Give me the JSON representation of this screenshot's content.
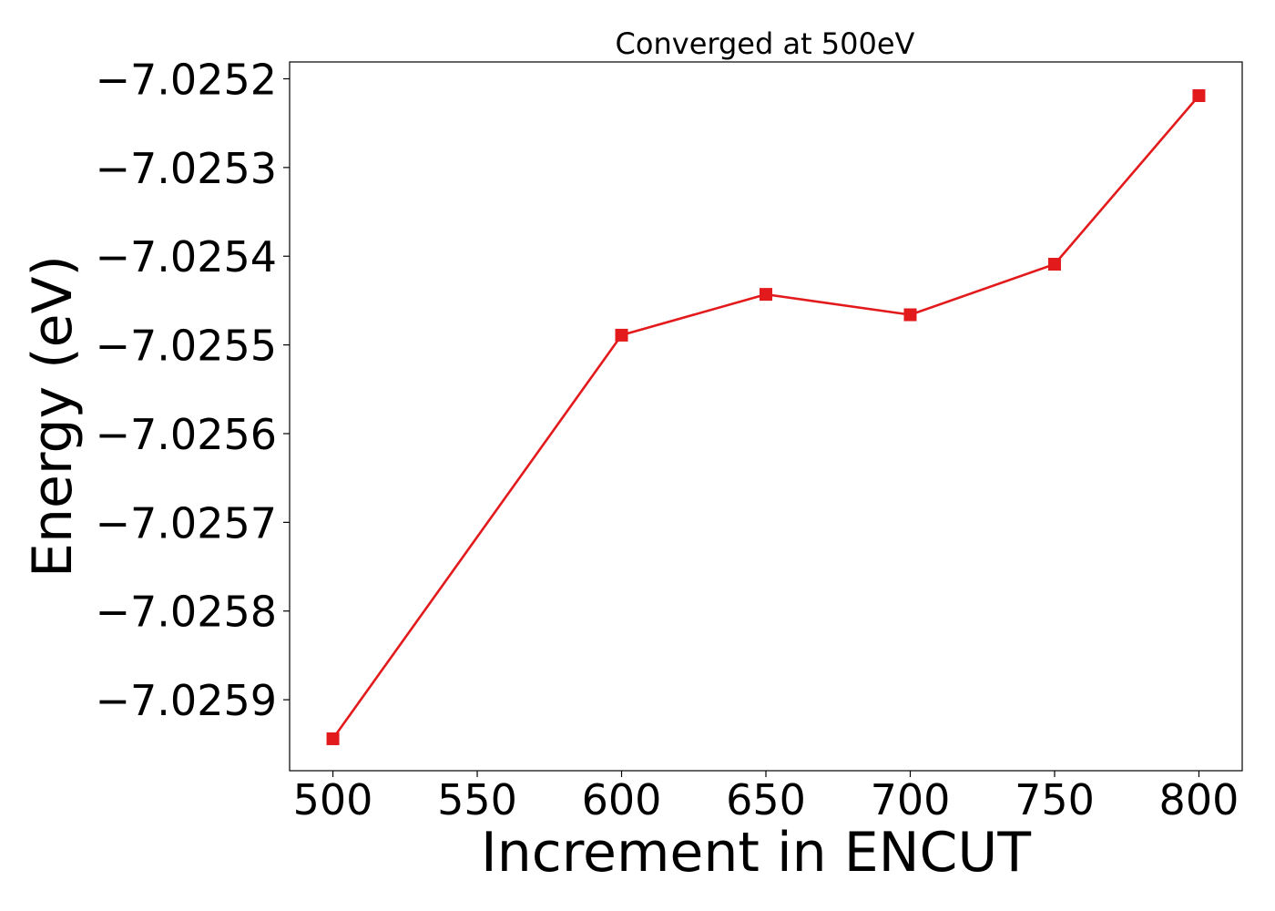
{
  "chart_data": {
    "type": "line",
    "title": "Converged at 500eV",
    "xlabel": "Increment in ENCUT",
    "ylabel": "Energy (eV)",
    "x": [
      500,
      600,
      650,
      700,
      750,
      800
    ],
    "series": [
      {
        "values": [
          -7.025944,
          -7.025489,
          -7.025443,
          -7.025466,
          -7.025409,
          -7.025219
        ],
        "color": "#e31a1c",
        "marker": "square"
      }
    ],
    "xlim": [
      485,
      815
    ],
    "ylim": [
      -7.02598,
      -7.025181
    ],
    "xticks": [
      500,
      550,
      600,
      650,
      700,
      750,
      800
    ],
    "xtick_labels": [
      "500",
      "550",
      "600",
      "650",
      "700",
      "750",
      "800"
    ],
    "yticks": [
      -7.0252,
      -7.0253,
      -7.0254,
      -7.0255,
      -7.0256,
      -7.0257,
      -7.0258,
      -7.0259
    ],
    "ytick_labels": [
      "−7.0252",
      "−7.0253",
      "−7.0254",
      "−7.0255",
      "−7.0256",
      "−7.0257",
      "−7.0258",
      "−7.0259"
    ],
    "grid": false,
    "legend": "none"
  }
}
